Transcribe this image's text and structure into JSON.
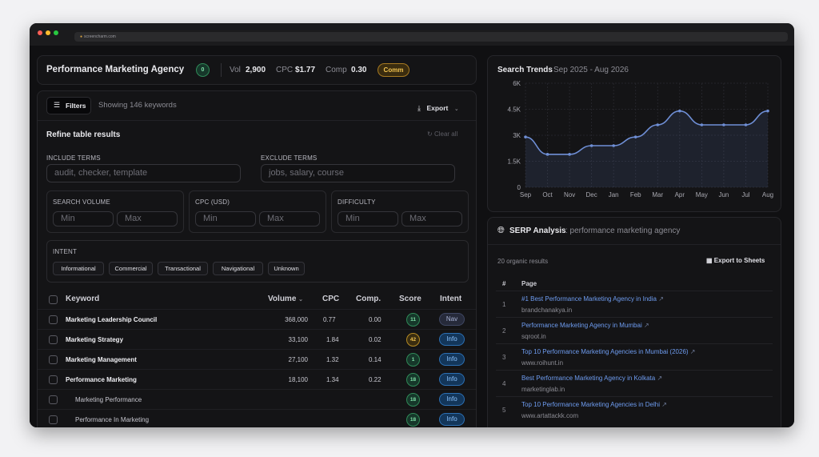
{
  "browser": {
    "url": "screencharm.com"
  },
  "header": {
    "title": "Performance Marketing Agency",
    "badge_count": "0",
    "vol_label": "Vol",
    "vol_value": "2,900",
    "cpc_label": "CPC",
    "cpc_value": "$1.77",
    "comp_label": "Comp",
    "comp_value": "0.30",
    "intent_badge": "Comm"
  },
  "toolbar": {
    "filters_label": "Filters",
    "showing_text": "Showing 146 keywords",
    "export_label": "Export"
  },
  "refine": {
    "title": "Refine table results",
    "clear_label": "Clear all",
    "include_label": "INCLUDE TERMS",
    "include_placeholder": "audit, checker, template",
    "exclude_label": "EXCLUDE TERMS",
    "exclude_placeholder": "jobs, salary, course",
    "volume_label": "SEARCH VOLUME",
    "cpc_label": "CPC (USD)",
    "difficulty_label": "DIFFICULTY",
    "min": "Min",
    "max": "Max",
    "intent_label": "INTENT",
    "intents": [
      "Informational",
      "Commercial",
      "Transactional",
      "Navigational",
      "Unknown"
    ]
  },
  "table": {
    "headers": {
      "keyword": "Keyword",
      "volume": "Volume",
      "cpc": "CPC",
      "comp": "Comp.",
      "score": "Score",
      "intent": "Intent"
    },
    "rows": [
      {
        "keyword": "Marketing Leadership Council",
        "volume": "368,000",
        "cpc": "0.77",
        "comp": "0.00",
        "score": "11",
        "intent": "Nav"
      },
      {
        "keyword": "Marketing Strategy",
        "volume": "33,100",
        "cpc": "1.84",
        "comp": "0.02",
        "score": "42",
        "intent": "Info"
      },
      {
        "keyword": "Marketing Management",
        "volume": "27,100",
        "cpc": "1.32",
        "comp": "0.14",
        "score": "1",
        "intent": "Info"
      },
      {
        "keyword": "Performance Marketing",
        "volume": "18,100",
        "cpc": "1.34",
        "comp": "0.22",
        "score": "18",
        "intent": "Info"
      },
      {
        "keyword": "Marketing Performance",
        "volume": "",
        "cpc": "",
        "comp": "",
        "score": "18",
        "intent": "Info"
      },
      {
        "keyword": "Performance In Marketing",
        "volume": "",
        "cpc": "",
        "comp": "",
        "score": "18",
        "intent": "Info"
      }
    ]
  },
  "trends": {
    "title": "Search Trends",
    "range": "Sep 2025 - Aug 2026"
  },
  "chart_data": {
    "type": "area",
    "title": "Search Trends",
    "subtitle": "Sep 2025 - Aug 2026",
    "categories": [
      "Sep",
      "Oct",
      "Nov",
      "Dec",
      "Jan",
      "Feb",
      "Mar",
      "Apr",
      "May",
      "Jun",
      "Jul",
      "Aug"
    ],
    "values": [
      2900,
      1900,
      1900,
      2400,
      2400,
      2900,
      3600,
      4400,
      3600,
      3600,
      3600,
      4400
    ],
    "ylim": [
      0,
      6000
    ],
    "yticks": [
      "0",
      "1.5K",
      "3K",
      "4.5K",
      "6K"
    ],
    "grid": true,
    "color": "#6f8fd6"
  },
  "serp": {
    "title": "SERP Analysis",
    "query": ": performance marketing agency",
    "count_text": "20 organic results",
    "export_label": "Export to Sheets",
    "col_num": "#",
    "col_page": "Page",
    "results": [
      {
        "num": "1",
        "title": "#1 Best Performance Marketing Agency in India",
        "url": "brandchanakya.in"
      },
      {
        "num": "2",
        "title": "Performance Marketing Agency in Mumbai",
        "url": "sqroot.in"
      },
      {
        "num": "3",
        "title": "Top 10 Performance Marketing Agencies in Mumbai (2026)",
        "url": "www.roihunt.in"
      },
      {
        "num": "4",
        "title": "Best Performance Marketing Agency in Kolkata",
        "url": "marketinglab.in"
      },
      {
        "num": "5",
        "title": "Top 10 Performance Marketing Agencies in Delhi",
        "url": "www.artattackk.com"
      }
    ]
  }
}
